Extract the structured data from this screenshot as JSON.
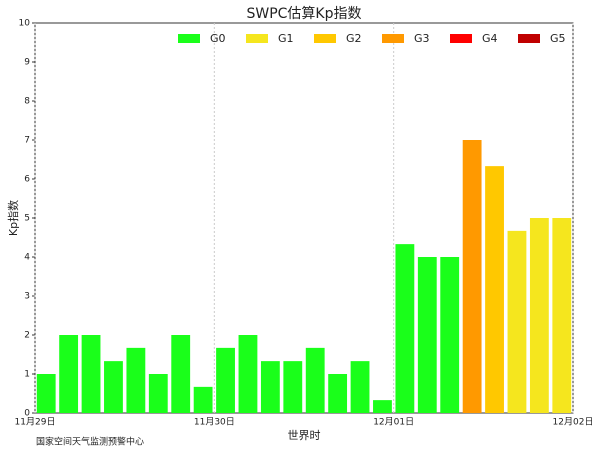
{
  "chart_data": {
    "type": "bar",
    "title": "SWPC估算Kp指数",
    "y_label": "Kp指数",
    "x_label": "世界时",
    "footer": "国家空间天气监测预警中心",
    "x": [
      1.5,
      4.5,
      7.5,
      10.5,
      13.5,
      16.5,
      19.5,
      22.5,
      25.5,
      28.5,
      31.5,
      34.5,
      37.5,
      40.5,
      43.5,
      46.5,
      49.5,
      52.5,
      55.5,
      58.5,
      61.5,
      64.5,
      67.5,
      70.5
    ],
    "values": [
      1,
      2,
      2,
      1.33,
      1.67,
      1,
      2,
      0.67,
      1.67,
      2,
      1.33,
      1.33,
      1.67,
      1,
      1.33,
      0.33,
      4.33,
      4,
      4,
      7,
      6.33,
      4.67,
      5,
      5
    ],
    "colors": [
      "#1aff1a",
      "#1aff1a",
      "#1aff1a",
      "#1aff1a",
      "#1aff1a",
      "#1aff1a",
      "#1aff1a",
      "#1aff1a",
      "#1aff1a",
      "#1aff1a",
      "#1aff1a",
      "#1aff1a",
      "#1aff1a",
      "#1aff1a",
      "#1aff1a",
      "#1aff1a",
      "#1aff1a",
      "#1aff1a",
      "#1aff1a",
      "#ff9900",
      "#ffc800",
      "#f5e61e",
      "#f5e61e",
      "#f5e61e"
    ],
    "legend": [
      {
        "name": "G0",
        "color": "#1aff1a"
      },
      {
        "name": "G1",
        "color": "#f5e61e"
      },
      {
        "name": "G2",
        "color": "#ffc800"
      },
      {
        "name": "G3",
        "color": "#ff9900"
      },
      {
        "name": "G4",
        "color": "#ff0000"
      },
      {
        "name": "G5",
        "color": "#c00000"
      }
    ],
    "xlim": [
      0,
      72
    ],
    "xticks": [
      {
        "value": 0,
        "label": "11月29日"
      },
      {
        "value": 24,
        "label": "11月30日"
      },
      {
        "value": 48,
        "label": "12月01日"
      },
      {
        "value": 72,
        "label": "12月02日"
      }
    ],
    "ylim": [
      0,
      10
    ],
    "yticks": [
      0,
      1,
      2,
      3,
      4,
      5,
      6,
      7,
      8,
      9,
      10
    ],
    "x_grid": true
  }
}
